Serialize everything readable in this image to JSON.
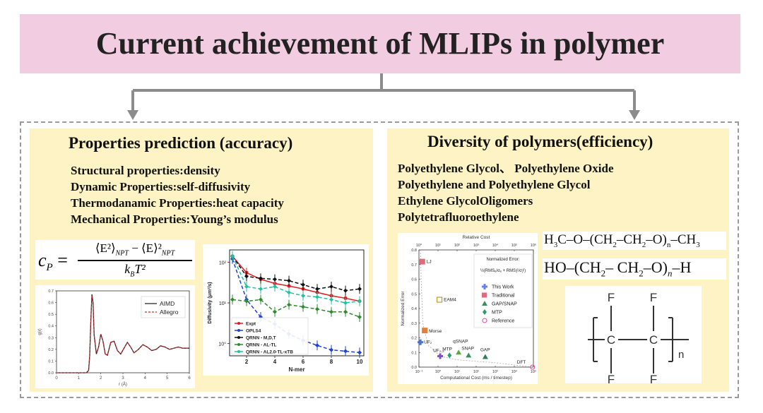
{
  "title": "Current achievement of MLIPs in polymer",
  "left": {
    "heading": "Properties prediction (accuracy)",
    "lines": [
      "Structural properties:density",
      "Dynamic Properties:self-diffusivity",
      "Thermodanamic Properties:heat capacity",
      "Mechanical Properties:Young’s modulus"
    ],
    "formula": {
      "lhs": "c",
      "lhs_sub": "P",
      "equals": "=",
      "num_a": "⟨E²⟩",
      "num_a_sub": "NPT",
      "minus": "−",
      "num_b": "⟨E⟩²",
      "num_b_sub": "NPT",
      "den": "k",
      "den_sub": "B",
      "den_rest": "T²"
    }
  },
  "right": {
    "heading": "Diversity of polymers(efficiency)",
    "lines": [
      "Polyethylene Glycol、 Polyethylene Oxide",
      "Polyethylene and Polyethylene Glycol",
      "Ethylene GlycolOligomers",
      "Polytetrafluoroethylene"
    ],
    "chem1": {
      "a": "H",
      "a_sub": "3",
      "b": "C–O–(CH",
      "b_sub": "2",
      "c": "–CH",
      "c_sub": "2",
      "d": "–O)",
      "d_sub": "n",
      "e": "–CH",
      "e_sub": "3"
    },
    "chem2": {
      "a": "HO–(CH",
      "a_sub": "2",
      "b": "– CH",
      "b_sub": "2",
      "c": "–O)",
      "c_sub": "n",
      "d": "–H"
    },
    "ptfe": {
      "f": "F",
      "c": "C",
      "n": "n"
    }
  },
  "chart_data": [
    {
      "type": "line",
      "xlabel": "r (Å)",
      "ylabel": "g(r)",
      "xlim": [
        0,
        6
      ],
      "ylim": [
        0,
        0.7
      ],
      "xticks": [
        "0",
        "1",
        "2",
        "3",
        "4",
        "5",
        "6"
      ],
      "yticks": [
        "0.0",
        "0.1",
        "0.2",
        "0.3",
        "0.4",
        "0.5",
        "0.6",
        "0.7"
      ],
      "legend_position": "top-right",
      "series": [
        {
          "name": "AIMD",
          "color": "#222222",
          "x": [
            0,
            0.5,
            1.0,
            1.35,
            1.45,
            1.5,
            1.55,
            1.6,
            1.65,
            1.7,
            1.8,
            1.9,
            2.0,
            2.1,
            2.2,
            2.3,
            2.45,
            2.6,
            2.75,
            2.9,
            3.05,
            3.2,
            3.35,
            3.5,
            3.7,
            3.9,
            4.1,
            4.3,
            4.5,
            4.7,
            4.9,
            5.1,
            5.3,
            5.5,
            5.7,
            5.9,
            6.0
          ],
          "y": [
            0,
            0,
            0,
            0,
            0.02,
            0.15,
            0.45,
            0.67,
            0.6,
            0.32,
            0.16,
            0.22,
            0.33,
            0.27,
            0.16,
            0.15,
            0.26,
            0.27,
            0.19,
            0.16,
            0.21,
            0.26,
            0.22,
            0.17,
            0.2,
            0.24,
            0.22,
            0.19,
            0.2,
            0.23,
            0.22,
            0.2,
            0.21,
            0.22,
            0.21,
            0.21,
            0.21
          ]
        },
        {
          "name": "Allegro",
          "color": "#d62728",
          "dashed": true,
          "x": [
            0,
            0.5,
            1.0,
            1.35,
            1.45,
            1.5,
            1.55,
            1.6,
            1.65,
            1.7,
            1.8,
            1.9,
            2.0,
            2.1,
            2.2,
            2.3,
            2.45,
            2.6,
            2.75,
            2.9,
            3.05,
            3.2,
            3.35,
            3.5,
            3.7,
            3.9,
            4.1,
            4.3,
            4.5,
            4.7,
            4.9,
            5.1,
            5.3,
            5.5,
            5.7,
            5.9,
            6.0
          ],
          "y": [
            0,
            0,
            0,
            0,
            0.02,
            0.14,
            0.44,
            0.66,
            0.6,
            0.33,
            0.17,
            0.22,
            0.33,
            0.27,
            0.16,
            0.15,
            0.26,
            0.27,
            0.19,
            0.16,
            0.21,
            0.26,
            0.22,
            0.17,
            0.2,
            0.24,
            0.22,
            0.19,
            0.2,
            0.23,
            0.22,
            0.2,
            0.21,
            0.22,
            0.21,
            0.21,
            0.21
          ]
        }
      ]
    },
    {
      "type": "line",
      "xlabel": "N-mer",
      "ylabel": "Diffusivity (μm²/s)",
      "yscale": "log",
      "xlim": [
        1,
        10
      ],
      "ylim": [
        0.5,
        200
      ],
      "xticks": [
        "2",
        "4",
        "6",
        "8",
        "10"
      ],
      "yticks": [
        "10⁰",
        "10¹",
        "10²"
      ],
      "legend_position": "bottom-left",
      "series": [
        {
          "name": "Expt",
          "color": "#e31a1c",
          "marker": "circle",
          "dashed": false,
          "x": [
            1,
            2,
            3,
            4,
            5,
            6,
            7,
            8,
            9,
            10
          ],
          "y": [
            140,
            55,
            38,
            30,
            26,
            22,
            18,
            15,
            13,
            11
          ]
        },
        {
          "name": "OPLS4",
          "color": "#1f3fd6",
          "marker": "diamond",
          "dashed": true,
          "x": [
            1,
            2,
            3,
            4,
            5,
            6,
            7,
            8,
            9,
            10
          ],
          "y": [
            120,
            12,
            4.5,
            3,
            1.7,
            1.2,
            0.9,
            0.7,
            0.65,
            0.6
          ]
        },
        {
          "name": "QRNN - M,D,T",
          "color": "#111111",
          "marker": "diamond",
          "dashed": true,
          "x": [
            1,
            2,
            3,
            4,
            5,
            6,
            7,
            8,
            9,
            10
          ],
          "y": [
            140,
            45,
            40,
            38,
            35,
            28,
            22,
            25,
            20,
            22
          ]
        },
        {
          "name": "QRNN - AL-TL",
          "color": "#2e8b2e",
          "marker": "diamond",
          "dashed": true,
          "x": [
            1,
            2,
            3,
            4,
            5,
            6,
            7,
            8,
            9,
            10
          ],
          "y": [
            12,
            11,
            12,
            6,
            9,
            8,
            7,
            6,
            6,
            4.5
          ]
        },
        {
          "name": "QRNN - AL2.0-TL-xTB",
          "color": "#20c0a0",
          "marker": "diamond",
          "dashed": true,
          "x": [
            1,
            2,
            3,
            4,
            5,
            6,
            7,
            8,
            9,
            10
          ],
          "y": [
            140,
            25,
            22,
            25,
            18,
            15,
            14,
            12,
            10,
            11
          ]
        }
      ]
    },
    {
      "type": "scatter",
      "xlabel": "Computational Cost (ms / timestep)",
      "ylabel": "Normalized Error",
      "top_label": "Relative Cost",
      "xscale": "log",
      "xlim": [
        0.1,
        100000
      ],
      "ylim": [
        0,
        0.8
      ],
      "xticks": [
        "10⁻¹",
        "10⁰",
        "10¹",
        "10²",
        "10³",
        "10⁴",
        "10⁵"
      ],
      "top_ticks": [
        "10⁰",
        "10¹",
        "10²",
        "10³",
        "10⁴",
        "10⁵",
        "10⁶"
      ],
      "yticks": [
        "0.0",
        "0.1",
        "0.2",
        "0.3",
        "0.4",
        "0.5",
        "0.6",
        "0.7",
        "0.8"
      ],
      "legend_title": "Normalized Error:",
      "legend_formula": "½(RMSₑ/σₑ + RMSƒ/σƒ)",
      "legend": [
        "This Work",
        "Traditional",
        "GAP/SNAP",
        "MTP",
        "Reference"
      ],
      "points": [
        {
          "label": "LJ",
          "x": 0.15,
          "y": 0.72,
          "group": "Traditional",
          "color": "#e06a7a"
        },
        {
          "label": "EAM4",
          "x": 1.2,
          "y": 0.46,
          "group": "Traditional",
          "color": "#b8860b"
        },
        {
          "label": "Morse",
          "x": 0.2,
          "y": 0.25,
          "group": "Traditional",
          "color": "#e0803a"
        },
        {
          "label": "UF₂",
          "x": 0.12,
          "y": 0.17,
          "group": "This Work",
          "color": "#4a6fd6"
        },
        {
          "label": "UF₂,₃",
          "x": 1.3,
          "y": 0.075,
          "group": "This Work",
          "color": "#7b52c9"
        },
        {
          "label": "MTP",
          "x": 4,
          "y": 0.08,
          "group": "MTP",
          "color": "#2a9d6a"
        },
        {
          "label": "qSNAP",
          "x": 12,
          "y": 0.1,
          "group": "GAP/SNAP",
          "color": "#5aaa3a"
        },
        {
          "label": "SNAP",
          "x": 40,
          "y": 0.08,
          "group": "GAP/SNAP",
          "color": "#3b8f5a"
        },
        {
          "label": "GAP",
          "x": 300,
          "y": 0.07,
          "group": "GAP/SNAP",
          "color": "#2e7d5a"
        },
        {
          "label": "DFT",
          "x": 90000,
          "y": 0.0,
          "group": "Reference",
          "color": "#d04a9a"
        }
      ]
    }
  ]
}
